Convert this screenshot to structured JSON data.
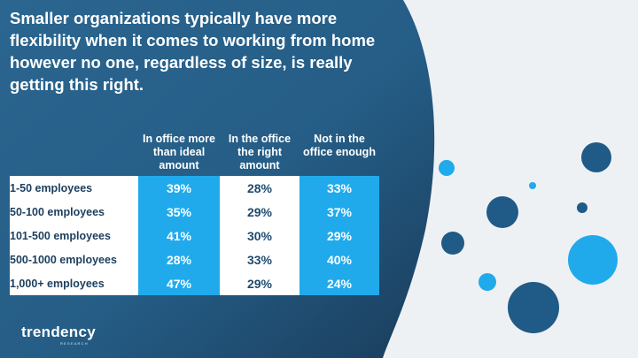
{
  "colors": {
    "dark_blue": "#1d3f5e",
    "mid_blue": "#2d6a92",
    "accent_blue": "#20aaec",
    "white": "#ffffff"
  },
  "slide": {
    "title": "Smaller organizations typically have more flexibility when it comes to working from home however no one, regardless of size, is really getting this right."
  },
  "table": {
    "columns": [
      "In office more than ideal amount",
      "In the office the right amount",
      "Not in the office enough"
    ],
    "rows": [
      {
        "label": "1-50 employees",
        "values": [
          "39%",
          "28%",
          "33%"
        ]
      },
      {
        "label": "50-100 employees",
        "values": [
          "35%",
          "29%",
          "37%"
        ]
      },
      {
        "label": "101-500 employees",
        "values": [
          "41%",
          "30%",
          "29%"
        ]
      },
      {
        "label": "500-1000 employees",
        "values": [
          "28%",
          "33%",
          "40%"
        ]
      },
      {
        "label": "1,000+ employees",
        "values": [
          "47%",
          "29%",
          "24%"
        ]
      }
    ]
  },
  "logo": {
    "name": "trendency",
    "tagline": "RESEARCH"
  },
  "decorations": [
    {
      "name": "light-blue-dot-small",
      "color": "#20aaec"
    },
    {
      "name": "light-blue-dot-tiny",
      "color": "#20aaec"
    },
    {
      "name": "dark-blue-dot-top-right",
      "color": "#1f5b86"
    },
    {
      "name": "dark-blue-dot-medium",
      "color": "#1f5b86"
    },
    {
      "name": "dark-blue-dot-tiny",
      "color": "#1f5b86"
    },
    {
      "name": "dark-blue-dot-left",
      "color": "#1f5b86"
    },
    {
      "name": "light-blue-dot-large",
      "color": "#20aaec"
    },
    {
      "name": "light-blue-dot-lower",
      "color": "#20aaec"
    },
    {
      "name": "dark-blue-dot-bottom",
      "color": "#1f5b86"
    }
  ]
}
